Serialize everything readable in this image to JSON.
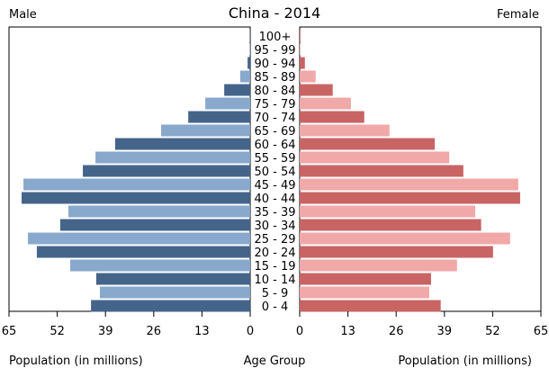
{
  "chart_data": {
    "type": "bar",
    "title": "China - 2014",
    "left_label": "Male",
    "right_label": "Female",
    "xlabel_left": "Population (in millions)",
    "xlabel_center": "Age Group",
    "xlabel_right": "Population (in millions)",
    "xlim": [
      0,
      65
    ],
    "xticks": [
      65,
      52,
      39,
      26,
      13,
      0
    ],
    "xticks_right": [
      0,
      13,
      26,
      39,
      52,
      65
    ],
    "categories": [
      "0 - 4",
      "5 - 9",
      "10 - 14",
      "15 - 19",
      "20 - 24",
      "25 - 29",
      "30 - 34",
      "35 - 39",
      "40 - 44",
      "45 - 49",
      "50 - 54",
      "55 - 59",
      "60 - 64",
      "65 - 69",
      "70 - 74",
      "75 - 79",
      "80 - 84",
      "85 - 89",
      "90 - 94",
      "95 - 99",
      "100+"
    ],
    "series": [
      {
        "name": "Male",
        "values": [
          42.9,
          40.5,
          41.5,
          48.5,
          57.5,
          59.9,
          51.2,
          49.0,
          61.6,
          61.1,
          45.1,
          41.7,
          36.4,
          24.0,
          16.7,
          12.1,
          7.0,
          2.7,
          0.7,
          0.1,
          0.1
        ]
      },
      {
        "name": "Female",
        "values": [
          38.0,
          34.9,
          35.4,
          42.4,
          52.1,
          56.7,
          48.9,
          47.3,
          59.4,
          58.9,
          44.1,
          40.3,
          36.4,
          24.2,
          17.4,
          13.8,
          8.9,
          4.3,
          1.4,
          0.1,
          0.2
        ]
      }
    ],
    "colors": {
      "male_dark": "#44648a",
      "male_light": "#88a8cc",
      "female_dark": "#c86464",
      "female_light": "#f0a8a8"
    }
  }
}
